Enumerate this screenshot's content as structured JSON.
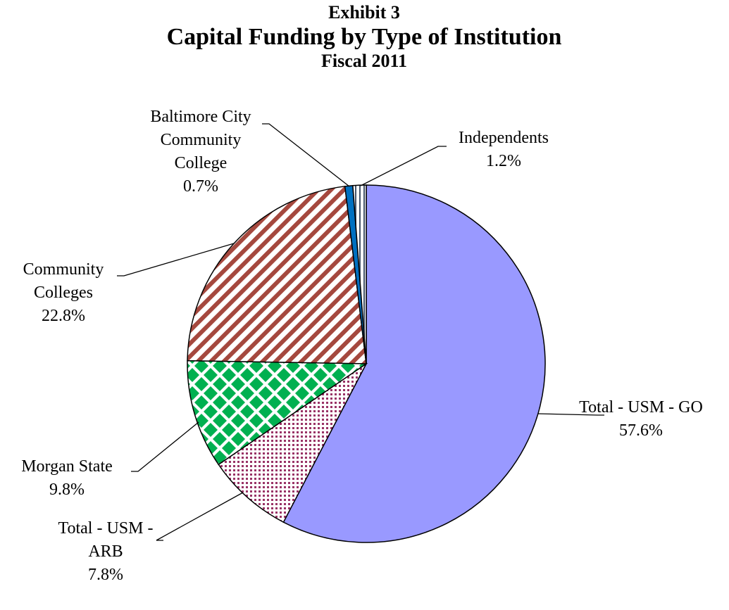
{
  "chart_data": {
    "type": "pie",
    "exhibit": "Exhibit 3",
    "title": "Capital Funding by Type of Institution",
    "subtitle": "Fiscal 2011",
    "categories": [
      "Total - USM - GO",
      "Total - USM - ARB",
      "Morgan State",
      "Community Colleges",
      "Baltimore City Community College",
      "Independents"
    ],
    "values": [
      57.6,
      7.8,
      9.8,
      22.8,
      0.7,
      1.2
    ],
    "value_labels": [
      "57.6%",
      "7.8%",
      "9.8%",
      "22.8%",
      "0.7%",
      "1.2%"
    ],
    "colors": [
      "#9999ff",
      "#993366",
      "#00b050",
      "#a5483e",
      "#0070c0",
      "#44546a"
    ],
    "patterns": [
      "solid",
      "dots",
      "diamonds",
      "diagonal",
      "solid",
      "vertical"
    ]
  }
}
